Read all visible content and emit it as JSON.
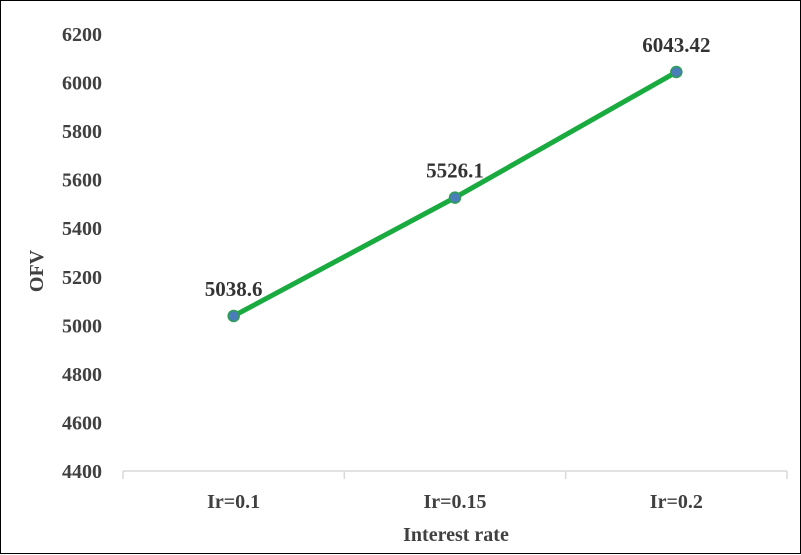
{
  "chart_data": {
    "type": "line",
    "categories": [
      "Ir=0.1",
      "Ir=0.15",
      "Ir=0.2"
    ],
    "series": [
      {
        "values": [
          5038.6,
          5526.1,
          6043.42
        ],
        "data_labels": [
          "5038.6",
          "5526.1",
          "6043.42"
        ]
      }
    ],
    "xlabel": "Interest rate",
    "ylabel": "OFV",
    "ylim": [
      4400,
      6200
    ],
    "yticks": [
      4400,
      4600,
      4800,
      5000,
      5200,
      5400,
      5600,
      5800,
      6000,
      6200
    ],
    "grid": false,
    "legend": "none",
    "line_color": "#1aab40",
    "marker_fill": "#4a7ebb",
    "marker_stroke": "#2e9e52"
  }
}
